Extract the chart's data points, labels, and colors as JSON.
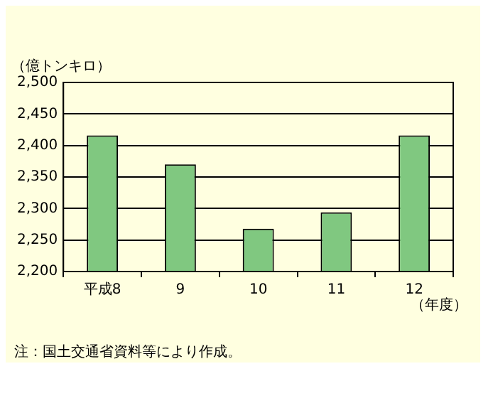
{
  "chart_data": {
    "type": "bar",
    "ylabel": "（億トンキロ）",
    "xlabel": "（年度）",
    "categories": [
      "平成8",
      "9",
      "10",
      "11",
      "12"
    ],
    "values": [
      2416,
      2370,
      2268,
      2294,
      2416
    ],
    "color": "#80c880",
    "ylim": [
      2200,
      2500
    ],
    "yticks": [
      {
        "value": 2200,
        "label": "2,200"
      },
      {
        "value": 2250,
        "label": "2,250"
      },
      {
        "value": 2300,
        "label": "2,300"
      },
      {
        "value": 2350,
        "label": "2,350"
      },
      {
        "value": 2400,
        "label": "2,400"
      },
      {
        "value": 2450,
        "label": "2,450"
      },
      {
        "value": 2500,
        "label": "2,500"
      }
    ],
    "grid": "y",
    "legend": false,
    "annotations": [
      "注：国土交通省資料等により作成。"
    ]
  }
}
